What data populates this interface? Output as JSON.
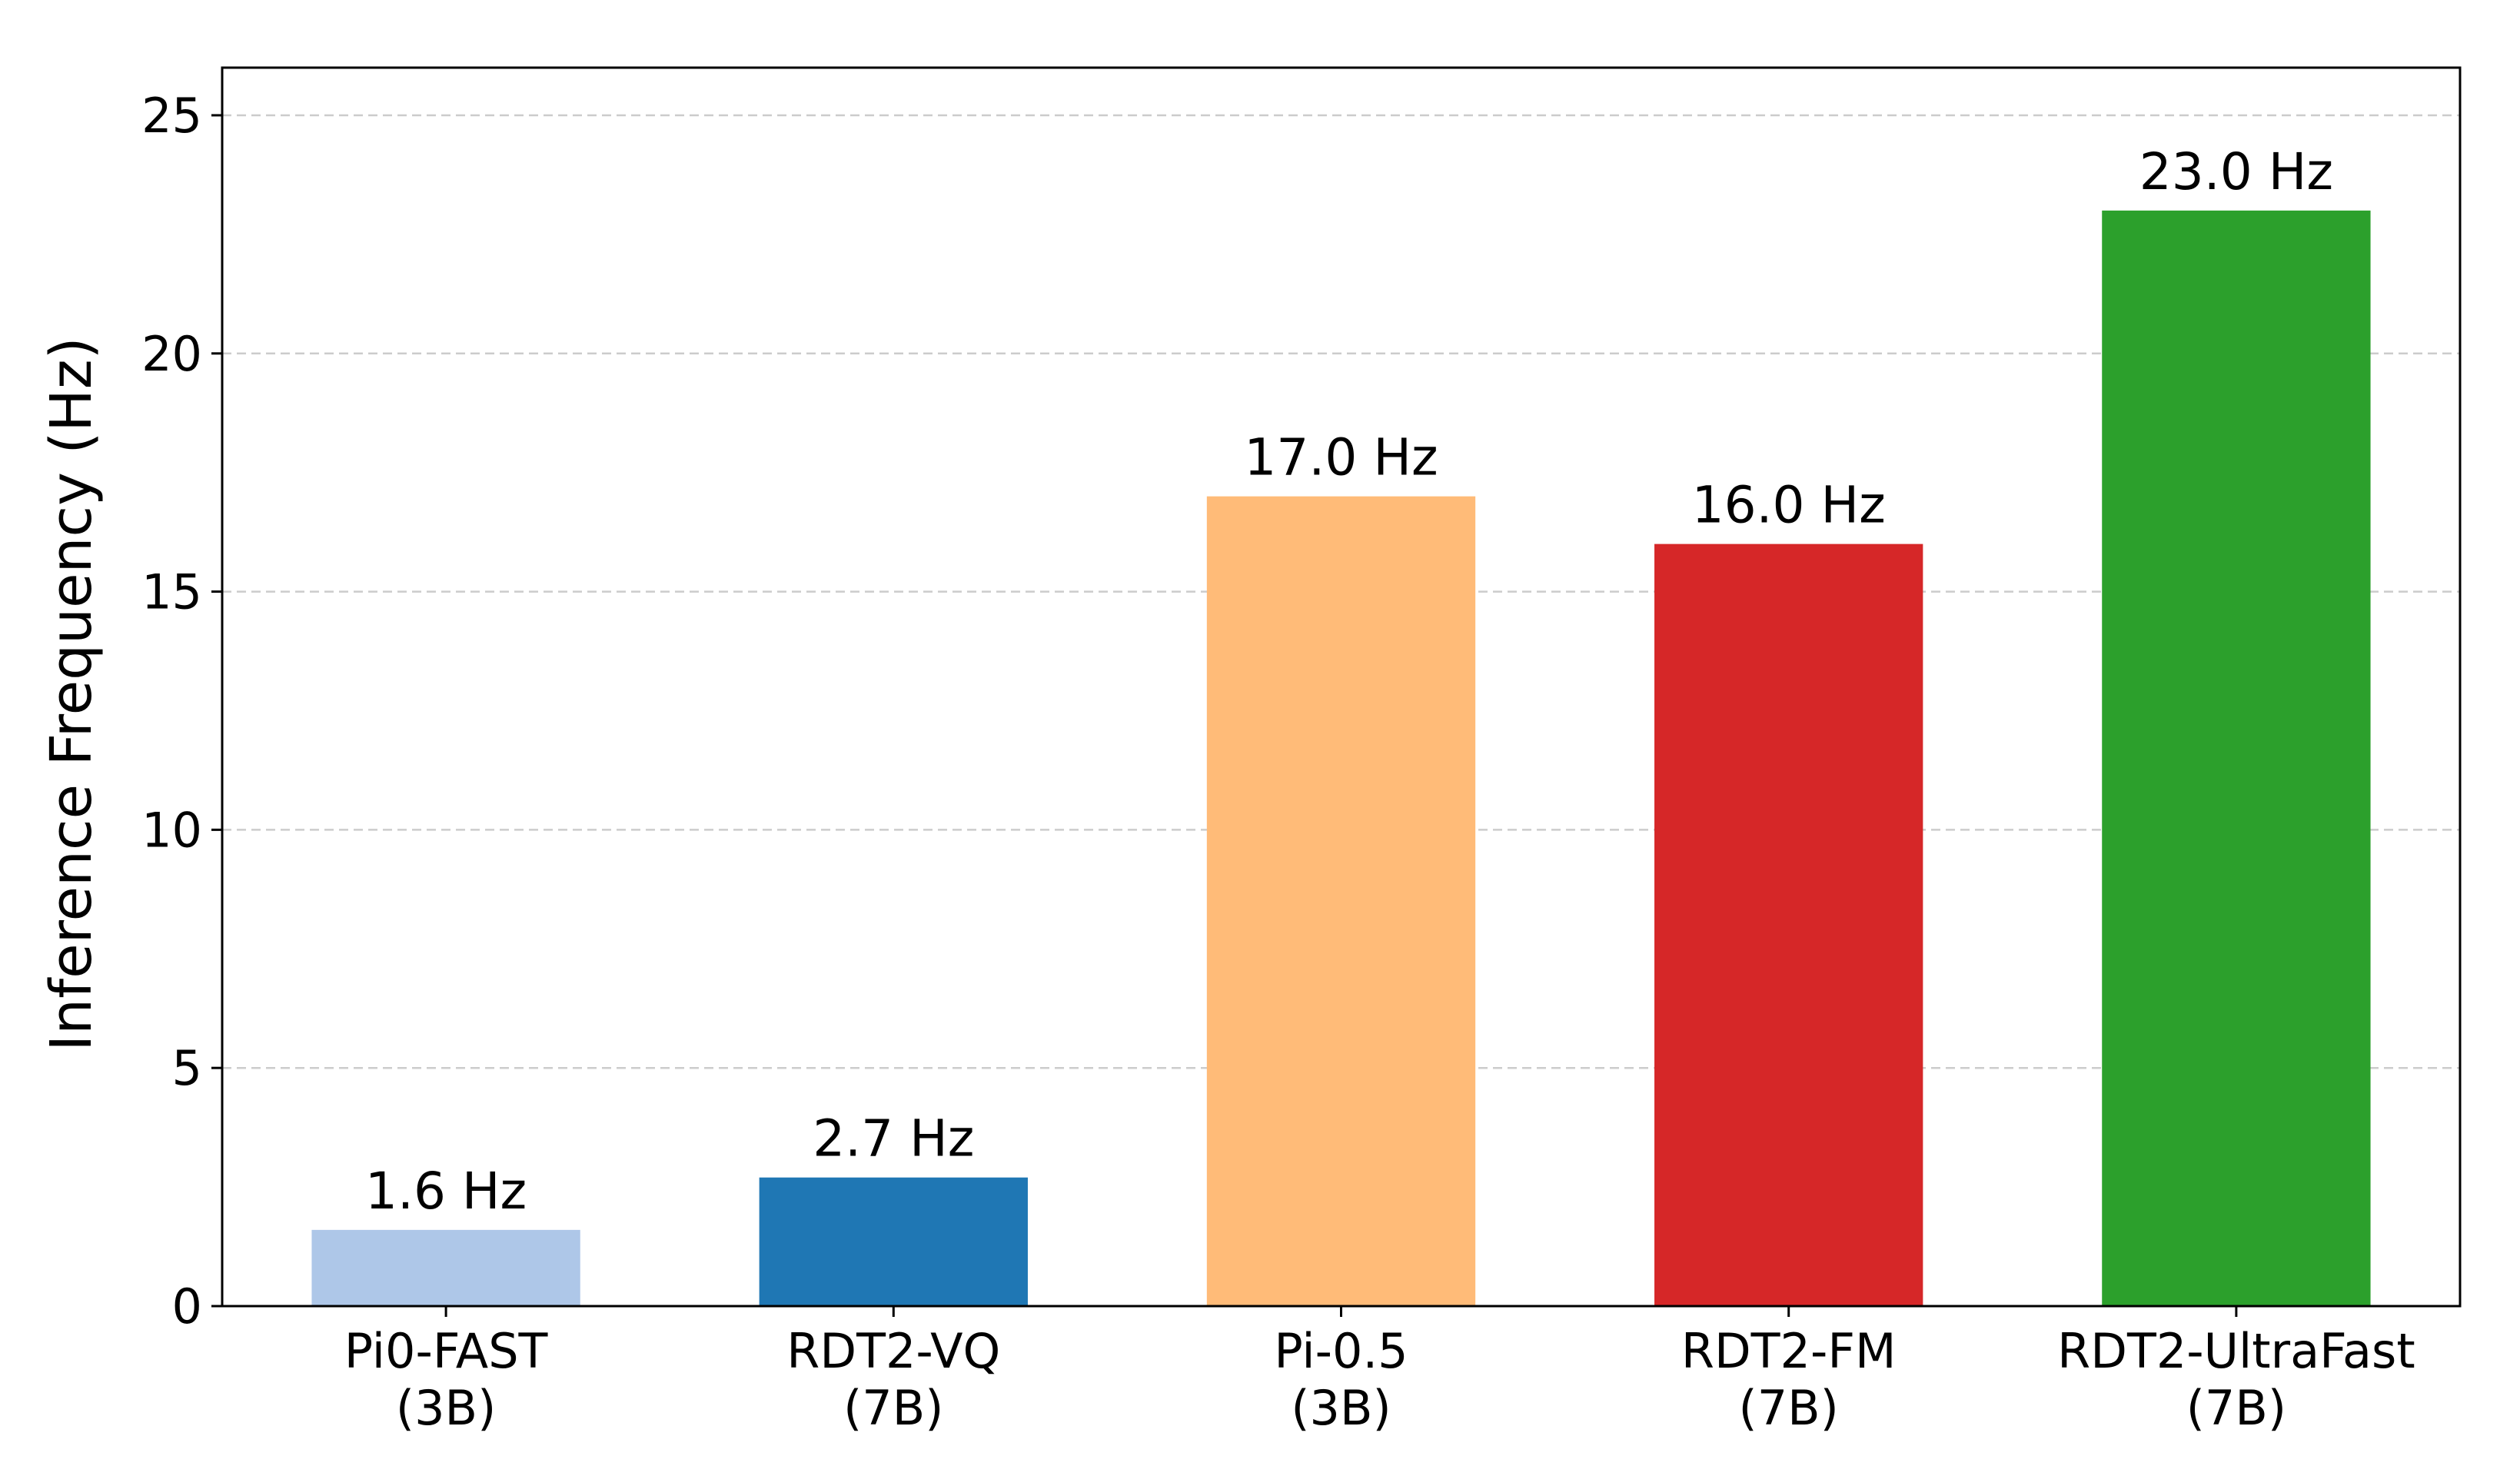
{
  "chart_data": {
    "type": "bar",
    "title": "",
    "xlabel": "",
    "ylabel": "Inference Frequency (Hz)",
    "ylim": [
      0,
      26
    ],
    "yticks": [
      0,
      5,
      10,
      15,
      20,
      25
    ],
    "grid": "horizontal dashed",
    "categories": [
      [
        "Pi0-FAST",
        "(3B)"
      ],
      [
        "RDT2-VQ",
        "(7B)"
      ],
      [
        "Pi-0.5",
        "(3B)"
      ],
      [
        "RDT2-FM",
        "(7B)"
      ],
      [
        "RDT2-UltraFast",
        "(7B)"
      ]
    ],
    "values": [
      1.6,
      2.7,
      17.0,
      16.0,
      23.0
    ],
    "data_labels": [
      "1.6 Hz",
      "2.7 Hz",
      "17.0 Hz",
      "16.0 Hz",
      "23.0 Hz"
    ],
    "colors": [
      "#aec7e8",
      "#1f77b4",
      "#ffbb78",
      "#d62728",
      "#2ca02c"
    ]
  }
}
